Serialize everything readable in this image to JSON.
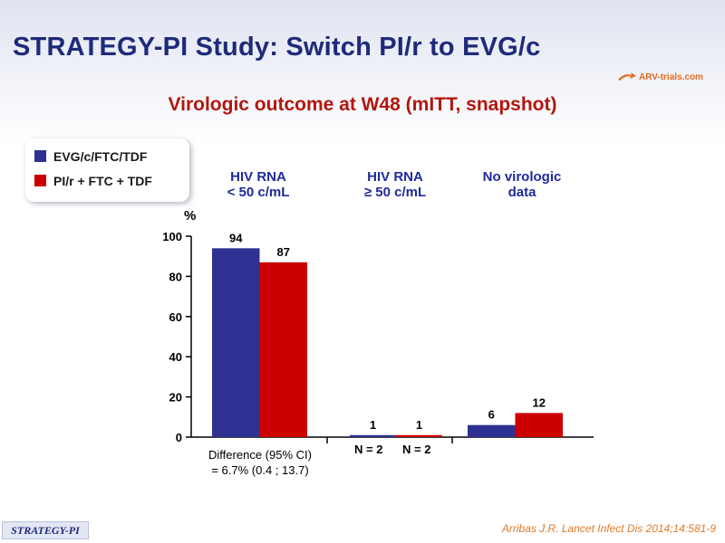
{
  "slide": {
    "title": "STRATEGY-PI Study: Switch PI/r to EVG/c",
    "subtitle": "Virologic outcome at W48 (mITT, snapshot)",
    "brand": "ARV-trials.com",
    "footer_label": "STRATEGY-PI",
    "citation": "Arribas J.R. Lancet Infect Dis 2014;14:581-9"
  },
  "legend": [
    {
      "label": "EVG/c/FTC/TDF",
      "color": "#2e3192"
    },
    {
      "label": "PI/r + FTC + TDF",
      "color": "#cc0000"
    }
  ],
  "columns": {
    "c1_line1": "HIV RNA",
    "c1_line2": "< 50 c/mL",
    "c2_line1": "HIV RNA",
    "c2_line2": "≥ 50 c/mL",
    "c3_line1": "No virologic",
    "c3_line2": "data"
  },
  "annotations": {
    "difference_line1": "Difference (95% CI)",
    "difference_line2": "= 6.7% (0.4 ; 13.7)",
    "n_evg": "N = 2",
    "n_pir": "N = 2"
  },
  "chart_data": {
    "type": "bar",
    "ylabel": "%",
    "ylim": [
      0,
      100
    ],
    "yticks": [
      0,
      20,
      40,
      60,
      80,
      100
    ],
    "categories": [
      "HIV RNA < 50 c/mL",
      "HIV RNA ≥ 50 c/mL",
      "No virologic data"
    ],
    "series": [
      {
        "name": "EVG/c/FTC/TDF",
        "color": "#2e3192",
        "values": [
          94,
          1,
          6
        ]
      },
      {
        "name": "PI/r + FTC + TDF",
        "color": "#cc0000",
        "values": [
          87,
          1,
          12
        ]
      }
    ],
    "grid": false,
    "legend_position": "top-left"
  }
}
